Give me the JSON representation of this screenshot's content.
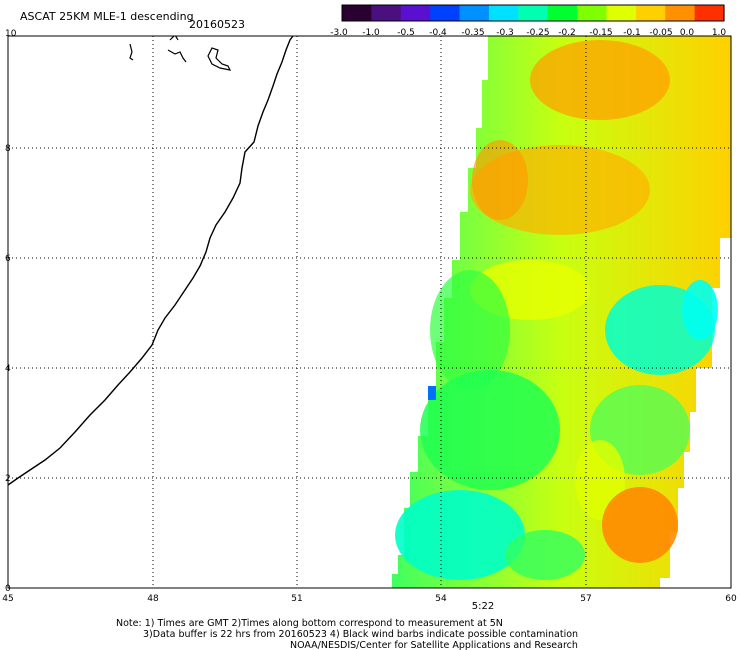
{
  "header": {
    "title": "ASCAT 25KM MLE-1 descending",
    "date": "20160523"
  },
  "colorbar": {
    "ticks": [
      "-3.0",
      "-1.0",
      "-0.5",
      "-0.4",
      "-0.35",
      "-0.3",
      "-0.25",
      "-0.2",
      "-0.15",
      "-0.1",
      "-0.05",
      "0.0",
      "1.0"
    ],
    "colors": [
      "#2a0030",
      "#4a1080",
      "#5a10d0",
      "#0040ff",
      "#0090ff",
      "#00e0ff",
      "#00ffb0",
      "#00ff30",
      "#80ff00",
      "#e0ff00",
      "#ffd000",
      "#ff9000",
      "#ff3000"
    ]
  },
  "map": {
    "x_ticks": [
      "45",
      "48",
      "51",
      "54",
      "57",
      "60"
    ],
    "y_ticks": [
      "0",
      "2",
      "4",
      "6",
      "8",
      "10"
    ],
    "time_label": "5:22",
    "time_color": "#cc2200"
  },
  "notes": [
    "Note: 1) Times are GMT 2)Times along bottom correspond to measurement at 5N",
    "3)Data buffer is 22 hrs from 20160523 4) Black wind barbs indicate possible contamination",
    "NOAA/NESDIS/Center for Satellite Applications and Research"
  ]
}
